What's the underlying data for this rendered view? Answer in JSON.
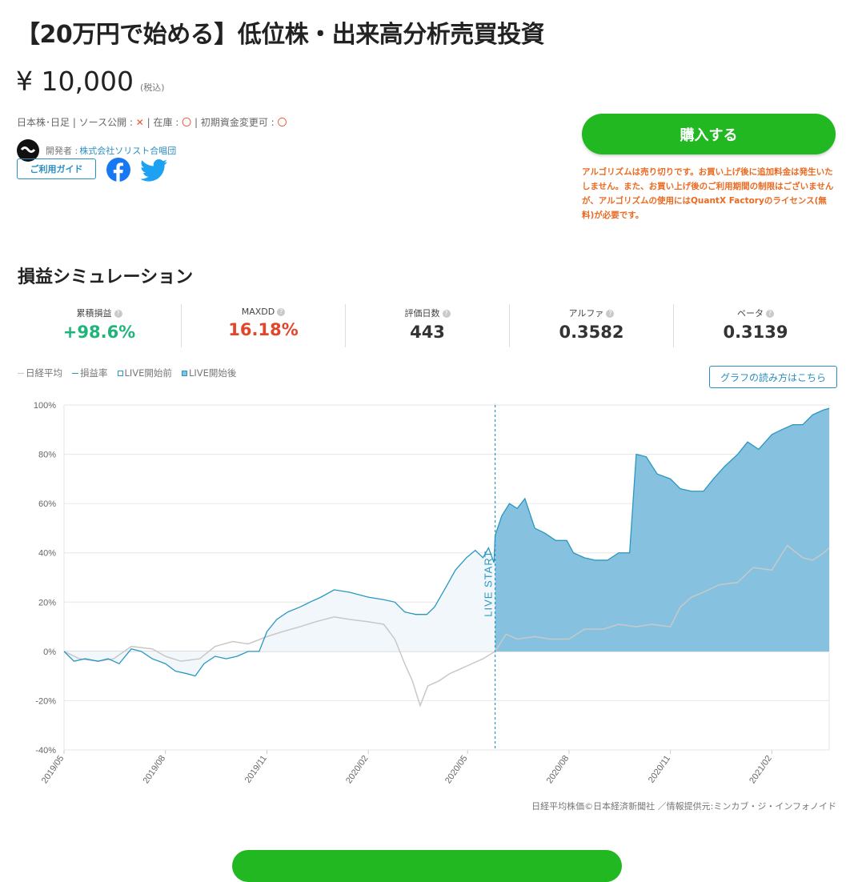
{
  "product": {
    "title": "【20万円で始める】低位株・出来高分析売買投資",
    "price": "¥ 10,000",
    "price_tax": "(税込)",
    "meta_prefix": "日本株･日足 | ソース公開 : ",
    "source_public_mark": "✕",
    "meta_stock": " | 在庫 : ",
    "stock_mark": "〇",
    "meta_capital": " | 初期資金変更可 : ",
    "capital_mark": "〇",
    "developer_label": "開発者 :",
    "developer_name": "株式会社ソリスト合唱団",
    "guide_button": "ご利用ガイド",
    "facebook_icon": "facebook-icon",
    "twitter_icon": "twitter-icon"
  },
  "purchase": {
    "buy_button": "購入する",
    "notice": "アルゴリズムは売り切りです。お買い上げ後に追加料金は発生いたしません。また、お買い上げ後のご利用期間の制限はございませんが、アルゴリズムの使用にはQuantX Factoryのライセンス(無料)が必要です。",
    "accent_color": "#22b822",
    "notice_color": "#ea6a22"
  },
  "simulation": {
    "title": "損益シミュレーション",
    "stats": [
      {
        "label": "累積損益",
        "value": "+98.6%",
        "color": "#1fb47a"
      },
      {
        "label": "MAXDD",
        "value": "16.18%",
        "color": "#e2452a"
      },
      {
        "label": "評価日数",
        "value": "443",
        "color": "#333333"
      },
      {
        "label": "アルファ",
        "value": "0.3582",
        "color": "#333333"
      },
      {
        "label": "ベータ",
        "value": "0.3139",
        "color": "#333333"
      }
    ],
    "help_icon": "?",
    "legend": [
      "日経平均",
      "損益率",
      "LIVE開始前",
      "LIVE開始後"
    ],
    "howto_button": "グラフの読み方はこちら",
    "credit": "日経平均株価©日本経済新聞社 ／情報提供元:ミンカブ・ジ・インフォノイド"
  },
  "chart_data": {
    "type": "area",
    "ylim": [
      -40,
      100
    ],
    "y_ticks": [
      100,
      80,
      60,
      40,
      20,
      0,
      -20,
      -40
    ],
    "y_tick_labels": [
      "100%",
      "80%",
      "60%",
      "40%",
      "20%",
      "0%",
      "-20%",
      "-40%"
    ],
    "x_tick_labels": [
      "2019/05",
      "2019/08",
      "2019/11",
      "2020/02",
      "2020/05",
      "2020/08",
      "2020/11",
      "2021/02"
    ],
    "live_start_label": "LIVE START",
    "live_start_date": "2020/05/26",
    "grid": true,
    "colors": {
      "nikkei": "#c8c8c8",
      "pnl": "#2a97c2",
      "pre_fill": "#f1f7fa",
      "post_fill": "#86c2df"
    },
    "series": [
      {
        "name": "損益率",
        "points": [
          [
            "2019/05/01",
            0
          ],
          [
            "2019/05/10",
            -4
          ],
          [
            "2019/05/20",
            -3
          ],
          [
            "2019/06/01",
            -4
          ],
          [
            "2019/06/10",
            -3
          ],
          [
            "2019/06/20",
            -5
          ],
          [
            "2019/07/01",
            1
          ],
          [
            "2019/07/10",
            0
          ],
          [
            "2019/07/20",
            -3
          ],
          [
            "2019/08/01",
            -5
          ],
          [
            "2019/08/10",
            -8
          ],
          [
            "2019/08/20",
            -9
          ],
          [
            "2019/08/28",
            -10
          ],
          [
            "2019/09/05",
            -5
          ],
          [
            "2019/09/15",
            -2
          ],
          [
            "2019/09/25",
            -3
          ],
          [
            "2019/10/05",
            -2
          ],
          [
            "2019/10/15",
            0
          ],
          [
            "2019/10/25",
            0
          ],
          [
            "2019/11/01",
            8
          ],
          [
            "2019/11/10",
            13
          ],
          [
            "2019/11/20",
            16
          ],
          [
            "2019/12/01",
            18
          ],
          [
            "2019/12/10",
            20
          ],
          [
            "2019/12/20",
            22
          ],
          [
            "2020/01/01",
            25
          ],
          [
            "2020/01/15",
            24
          ],
          [
            "2020/02/01",
            22
          ],
          [
            "2020/02/15",
            21
          ],
          [
            "2020/02/25",
            20
          ],
          [
            "2020/03/05",
            16
          ],
          [
            "2020/03/15",
            15
          ],
          [
            "2020/03/25",
            15
          ],
          [
            "2020/04/01",
            18
          ],
          [
            "2020/04/10",
            25
          ],
          [
            "2020/04/20",
            33
          ],
          [
            "2020/04/30",
            38
          ],
          [
            "2020/05/08",
            41
          ],
          [
            "2020/05/15",
            38
          ],
          [
            "2020/05/20",
            42
          ],
          [
            "2020/05/25",
            36
          ],
          [
            "2020/05/26",
            47
          ],
          [
            "2020/06/01",
            55
          ],
          [
            "2020/06/08",
            60
          ],
          [
            "2020/06/15",
            58
          ],
          [
            "2020/06/22",
            62
          ],
          [
            "2020/07/01",
            50
          ],
          [
            "2020/07/10",
            48
          ],
          [
            "2020/07/20",
            45
          ],
          [
            "2020/07/30",
            45
          ],
          [
            "2020/08/05",
            40
          ],
          [
            "2020/08/15",
            38
          ],
          [
            "2020/08/25",
            37
          ],
          [
            "2020/09/05",
            37
          ],
          [
            "2020/09/15",
            40
          ],
          [
            "2020/09/25",
            40
          ],
          [
            "2020/10/01",
            80
          ],
          [
            "2020/10/10",
            79
          ],
          [
            "2020/10/20",
            72
          ],
          [
            "2020/11/01",
            70
          ],
          [
            "2020/11/10",
            66
          ],
          [
            "2020/11/20",
            65
          ],
          [
            "2020/12/01",
            65
          ],
          [
            "2020/12/10",
            70
          ],
          [
            "2020/12/20",
            75
          ],
          [
            "2021/01/01",
            80
          ],
          [
            "2021/01/10",
            85
          ],
          [
            "2021/01/20",
            82
          ],
          [
            "2021/02/01",
            88
          ],
          [
            "2021/02/10",
            90
          ],
          [
            "2021/02/20",
            92
          ],
          [
            "2021/03/01",
            92
          ],
          [
            "2021/03/10",
            96
          ],
          [
            "2021/03/20",
            98
          ],
          [
            "2021/03/25",
            98.6
          ]
        ]
      },
      {
        "name": "日経平均",
        "points": [
          [
            "2019/05/01",
            0
          ],
          [
            "2019/05/15",
            -3
          ],
          [
            "2019/06/01",
            -4
          ],
          [
            "2019/06/15",
            -3
          ],
          [
            "2019/07/01",
            2
          ],
          [
            "2019/07/20",
            1
          ],
          [
            "2019/08/01",
            -2
          ],
          [
            "2019/08/15",
            -4
          ],
          [
            "2019/09/01",
            -3
          ],
          [
            "2019/09/15",
            2
          ],
          [
            "2019/10/01",
            4
          ],
          [
            "2019/10/15",
            3
          ],
          [
            "2019/11/01",
            6
          ],
          [
            "2019/11/15",
            8
          ],
          [
            "2019/12/01",
            10
          ],
          [
            "2019/12/15",
            12
          ],
          [
            "2020/01/01",
            14
          ],
          [
            "2020/01/15",
            13
          ],
          [
            "2020/02/01",
            12
          ],
          [
            "2020/02/15",
            11
          ],
          [
            "2020/02/25",
            5
          ],
          [
            "2020/03/05",
            -5
          ],
          [
            "2020/03/12",
            -12
          ],
          [
            "2020/03/19",
            -22
          ],
          [
            "2020/03/26",
            -14
          ],
          [
            "2020/04/05",
            -12
          ],
          [
            "2020/04/15",
            -9
          ],
          [
            "2020/04/25",
            -7
          ],
          [
            "2020/05/05",
            -5
          ],
          [
            "2020/05/15",
            -3
          ],
          [
            "2020/05/26",
            0
          ],
          [
            "2020/06/05",
            7
          ],
          [
            "2020/06/15",
            5
          ],
          [
            "2020/07/01",
            6
          ],
          [
            "2020/07/15",
            5
          ],
          [
            "2020/08/01",
            5
          ],
          [
            "2020/08/15",
            9
          ],
          [
            "2020/09/01",
            9
          ],
          [
            "2020/09/15",
            11
          ],
          [
            "2020/10/01",
            10
          ],
          [
            "2020/10/15",
            11
          ],
          [
            "2020/11/01",
            10
          ],
          [
            "2020/11/10",
            18
          ],
          [
            "2020/11/20",
            22
          ],
          [
            "2020/12/01",
            24
          ],
          [
            "2020/12/15",
            27
          ],
          [
            "2021/01/01",
            28
          ],
          [
            "2021/01/15",
            34
          ],
          [
            "2021/02/01",
            33
          ],
          [
            "2021/02/15",
            43
          ],
          [
            "2021/03/01",
            38
          ],
          [
            "2021/03/10",
            37
          ],
          [
            "2021/03/20",
            40
          ],
          [
            "2021/03/25",
            42
          ]
        ]
      }
    ]
  }
}
